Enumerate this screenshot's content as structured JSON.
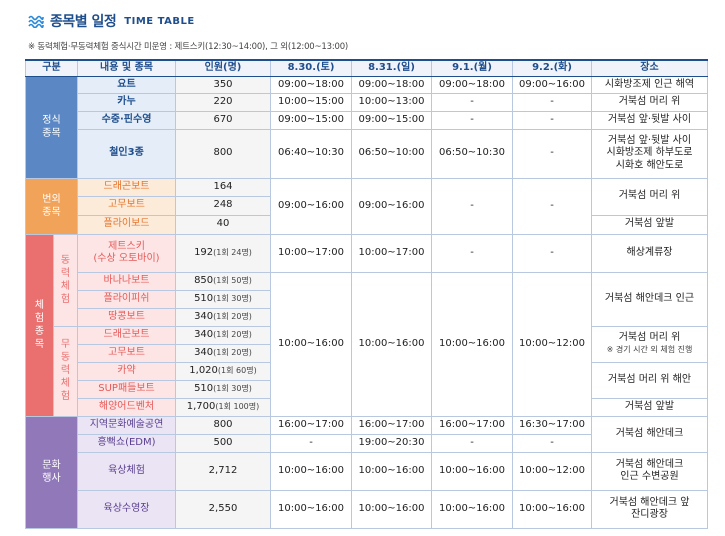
{
  "header": {
    "title": "종목별 일정",
    "subtitle": "TIME TABLE",
    "note": "※ 동력체험·무동력체험 중식시간 미운영 : 제트스키(12:30~14:00), 그 외(12:00~13:00)"
  },
  "table": {
    "columns": [
      "구분",
      "내용 및 종목",
      "인원(명)",
      "8.30.(토)",
      "8.31.(일)",
      "9.1.(월)",
      "9.2.(화)",
      "장소"
    ],
    "formal": {
      "category": "정식\n종목",
      "rows": [
        {
          "item": "요트",
          "count": "350",
          "d1": "09:00~18:00",
          "d2": "09:00~18:00",
          "d3": "09:00~18:00",
          "d4": "09:00~16:00",
          "place": "시화방조제 인근 해역"
        },
        {
          "item": "카누",
          "count": "220",
          "d1": "10:00~15:00",
          "d2": "10:00~13:00",
          "d3": "-",
          "d4": "-",
          "place": "거북섬 머리 위"
        },
        {
          "item": "수중·핀수영",
          "count": "670",
          "d1": "09:00~15:00",
          "d2": "09:00~15:00",
          "d3": "-",
          "d4": "-",
          "place": "거북섬 앞·뒷발 사이"
        },
        {
          "item": "철인3종",
          "count": "800",
          "d1": "06:40~10:30",
          "d2": "06:50~10:00",
          "d3": "06:50~10:30",
          "d4": "-",
          "place": "거북섬 앞·뒷발 사이\n시화방조제 하부도로\n시화호 해안도로"
        }
      ]
    },
    "extra": {
      "category": "번외\n종목",
      "d1": "09:00~16:00",
      "d2": "09:00~16:00",
      "d3": "-",
      "d4": "-",
      "place1": "거북섬 머리 위",
      "place2": "거북섬 앞발",
      "rows": [
        {
          "item": "드래곤보트",
          "count": "164"
        },
        {
          "item": "고무보트",
          "count": "248"
        },
        {
          "item": "플라이보드",
          "count": "40"
        }
      ]
    },
    "experience": {
      "category": "체\n험\n종\n목",
      "powered_label": "동\n력\n체\n험",
      "nonpowered_label": "무\n동\n력\n체\n험",
      "jetski": {
        "item": "제트스키\n(수상 오토바이)",
        "count": "192",
        "count_note": "(1회 24명)",
        "d1": "10:00~17:00",
        "d2": "10:00~17:00",
        "d3": "-",
        "d4": "-",
        "place": "해상계류장"
      },
      "powered_rows": [
        {
          "item": "바나나보트",
          "count": "850",
          "count_note": "(1회 50명)"
        },
        {
          "item": "플라이피쉬",
          "count": "510",
          "count_note": "(1회 30명)"
        },
        {
          "item": "땅콩보트",
          "count": "340",
          "count_note": "(1회 20명)"
        }
      ],
      "nonpowered_rows": [
        {
          "item": "드래곤보트",
          "count": "340",
          "count_note": "(1회 20명)"
        },
        {
          "item": "고무보트",
          "count": "340",
          "count_note": "(1회 20명)"
        },
        {
          "item": "카약",
          "count": "1,020",
          "count_note": "(1회 60명)"
        },
        {
          "item": "SUP패들보트",
          "count": "510",
          "count_note": "(1회 30명)"
        },
        {
          "item": "해양어드벤처",
          "count": "1,700",
          "count_note": "(1회 100명)"
        }
      ],
      "d1": "10:00~16:00",
      "d2": "10:00~16:00",
      "d3": "10:00~16:00",
      "d4": "10:00~12:00",
      "place_powered": "거북섬 해안데크 인근",
      "place_np1": "거북섬 머리 위",
      "place_np1_note": "※ 경기 시간 외 체험 진행",
      "place_np2": "거북섬 머리 위 해안",
      "place_np3": "거북섬 앞발"
    },
    "culture": {
      "category": "문화\n행사",
      "rows": [
        {
          "item": "지역문화예술공연",
          "count": "800",
          "d1": "16:00~17:00",
          "d2": "16:00~17:00",
          "d3": "16:00~17:00",
          "d4": "16:30~17:00"
        },
        {
          "item": "흥뻑쇼(EDM)",
          "count": "500",
          "d1": "-",
          "d2": "19:00~20:30",
          "d3": "-",
          "d4": "-"
        },
        {
          "item": "육상체험",
          "count": "2,712",
          "d1": "10:00~16:00",
          "d2": "10:00~16:00",
          "d3": "10:00~16:00",
          "d4": "10:00~12:00",
          "place": "거북섬 해안데크\n인근 수변공원"
        },
        {
          "item": "육상수영장",
          "count": "2,550",
          "d1": "10:00~16:00",
          "d2": "10:00~16:00",
          "d3": "10:00~16:00",
          "d4": "10:00~16:00",
          "place": "거북섬 해안데크 앞\n잔디광장"
        }
      ],
      "place_top": "거북섬 해안데크"
    }
  }
}
